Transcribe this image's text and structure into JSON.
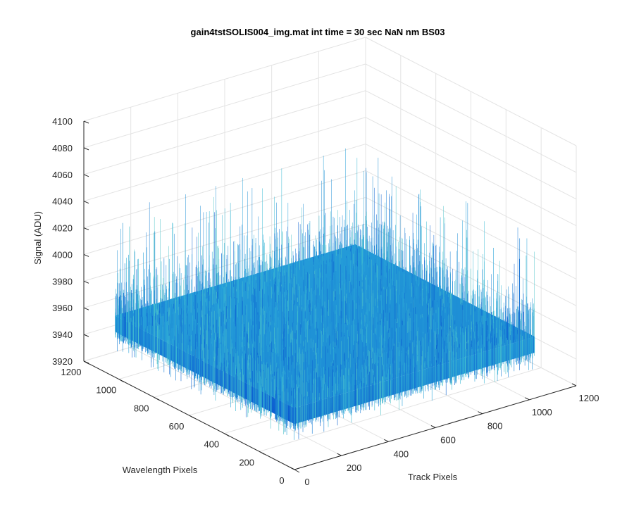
{
  "chart_data": {
    "type": "surface",
    "title": "gain4tstSOLIS004_img.mat int time = 30 sec  NaN nm BS03",
    "xlabel": "Track Pixels",
    "ylabel": "Wavelength Pixels",
    "zlabel": "Signal (ADU)",
    "xlim": [
      0,
      1200
    ],
    "ylim": [
      0,
      1200
    ],
    "zlim": [
      3920,
      4100
    ],
    "xticks": [
      "0",
      "200",
      "400",
      "600",
      "800",
      "1000",
      "1200"
    ],
    "yticks": [
      "0",
      "200",
      "400",
      "600",
      "800",
      "1000",
      "1200"
    ],
    "zticks": [
      "3920",
      "3940",
      "3960",
      "3980",
      "4000",
      "4020",
      "4040",
      "4060",
      "4080",
      "4100"
    ],
    "surface": {
      "x_range": [
        1,
        1024
      ],
      "y_range": [
        1,
        1024
      ],
      "mean_signal": 3960,
      "noise_min": 3940,
      "noise_max": 4045
    },
    "grid": true,
    "colors": {
      "surface_dark": "#0a5fd6",
      "surface_mid": "#1f86d8",
      "surface_light": "#2fb1d6",
      "grid": "#e3e3e3",
      "axis": "#262626"
    }
  }
}
